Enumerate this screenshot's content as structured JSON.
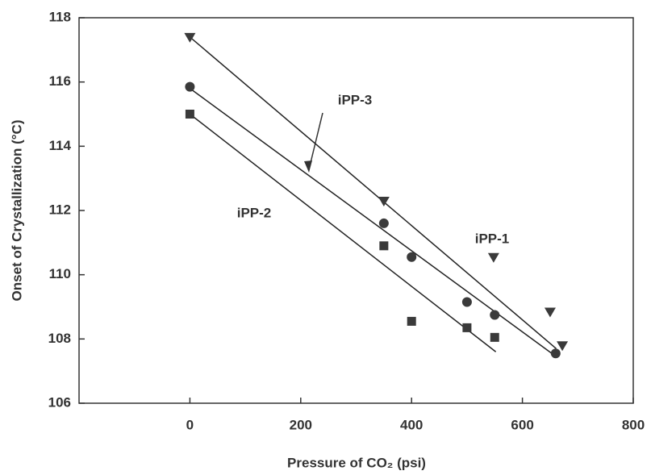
{
  "chart_data": {
    "type": "scatter",
    "xlabel": "Pressure of CO₂ (psi)",
    "ylabel": "Onset of Crystallization (°C)",
    "xlim": [
      -200,
      800
    ],
    "xticks": [
      0,
      200,
      400,
      600,
      800
    ],
    "ylim": [
      106,
      118
    ],
    "yticks": [
      106,
      108,
      110,
      112,
      114,
      116,
      118
    ],
    "series": [
      {
        "name": "iPP-1",
        "marker": "triangle",
        "color": "#3a3a3a",
        "x": [
          0,
          350,
          548,
          650,
          672
        ],
        "values": [
          117.4,
          112.3,
          110.55,
          108.85,
          107.8
        ],
        "fit": {
          "x": [
            0,
            661
          ],
          "y": [
            117.4,
            107.7
          ]
        }
      },
      {
        "name": "iPP-3",
        "marker": "circle",
        "color": "#3a3a3a",
        "x": [
          0,
          350,
          400,
          500,
          550,
          660
        ],
        "values": [
          115.85,
          111.6,
          110.55,
          109.15,
          108.75,
          107.55
        ],
        "fit": {
          "x": [
            0,
            661
          ],
          "y": [
            115.8,
            107.45
          ]
        }
      },
      {
        "name": "iPP-2",
        "marker": "square",
        "color": "#3a3a3a",
        "x": [
          0,
          350,
          400,
          500,
          550
        ],
        "values": [
          115.0,
          110.9,
          108.55,
          108.35,
          108.05
        ],
        "fit": {
          "x": [
            0,
            552
          ],
          "y": [
            115.0,
            107.6
          ]
        }
      }
    ]
  }
}
